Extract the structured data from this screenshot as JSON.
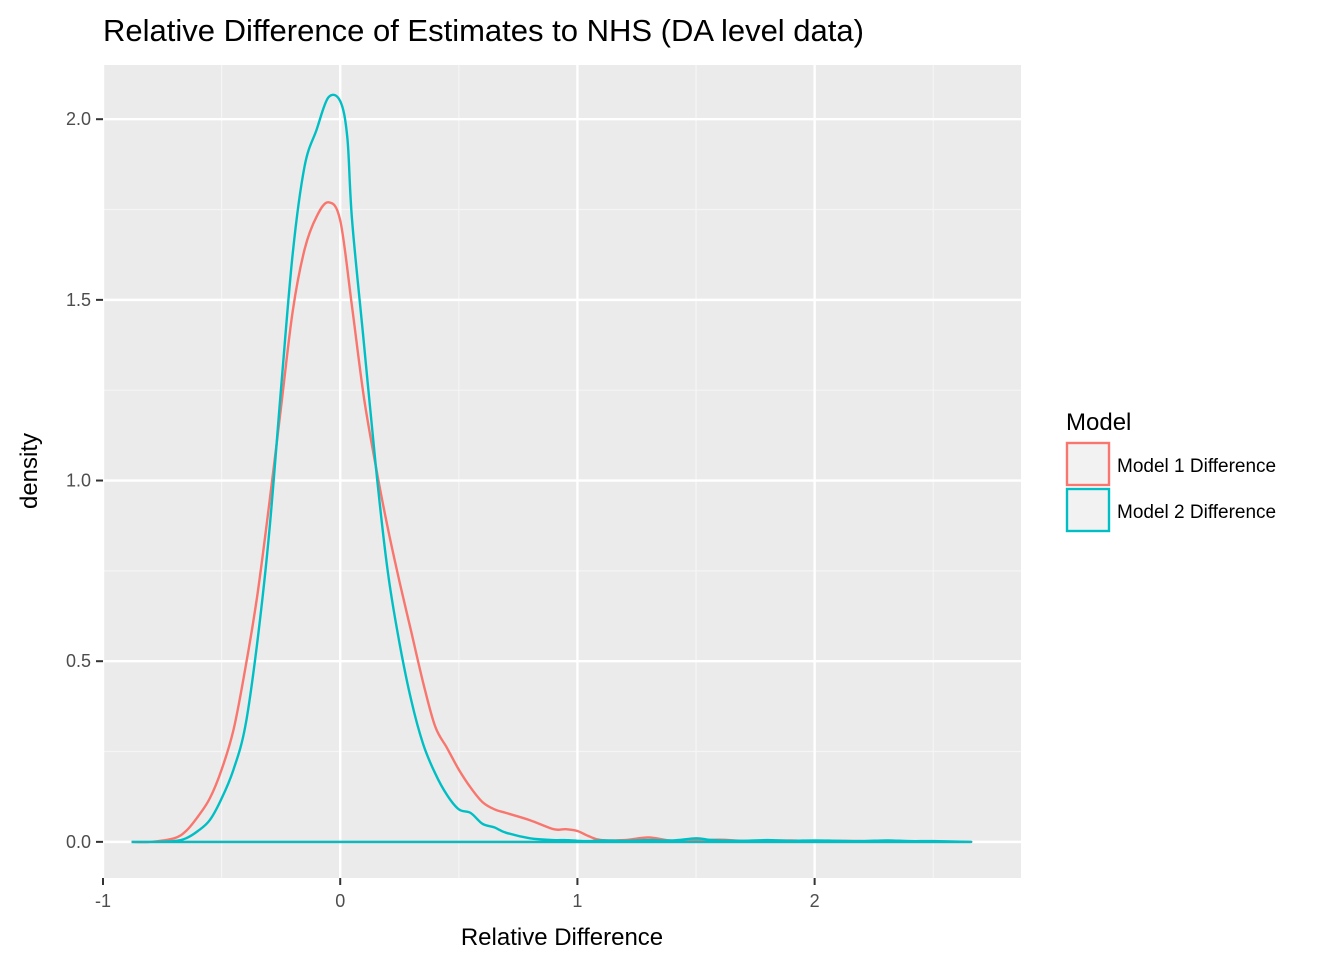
{
  "chart_data": {
    "type": "line",
    "title": "Relative Difference of Estimates to NHS (DA level data)",
    "xlabel": "Relative Difference",
    "ylabel": "density",
    "xlim": [
      -1.0,
      2.87
    ],
    "ylim": [
      -0.1,
      2.15
    ],
    "x_ticks": [
      -1,
      0,
      1,
      2
    ],
    "x_tick_labels": [
      "-1",
      "0",
      "1",
      "2"
    ],
    "x_minor": [
      -0.5,
      0.5,
      1.5,
      2.5
    ],
    "y_ticks": [
      0.0,
      0.5,
      1.0,
      1.5,
      2.0
    ],
    "y_tick_labels": [
      "0.0",
      "0.5",
      "1.0",
      "1.5",
      "2.0"
    ],
    "y_minor": [
      0.25,
      0.75,
      1.25,
      1.75
    ],
    "grid": true,
    "legend": {
      "title": "Model",
      "position": "right"
    },
    "baseline_range": [
      -0.88,
      2.66
    ],
    "series": [
      {
        "name": "Model 1 Difference",
        "color": "#F8766D",
        "x": [
          -0.88,
          -0.8,
          -0.7,
          -0.65,
          -0.6,
          -0.55,
          -0.5,
          -0.45,
          -0.4,
          -0.35,
          -0.3,
          -0.25,
          -0.2,
          -0.15,
          -0.1,
          -0.05,
          0.0,
          0.05,
          0.1,
          0.15,
          0.2,
          0.25,
          0.3,
          0.35,
          0.4,
          0.45,
          0.5,
          0.55,
          0.6,
          0.65,
          0.7,
          0.8,
          0.9,
          0.95,
          1.0,
          1.05,
          1.1,
          1.2,
          1.3,
          1.4,
          1.5,
          1.6,
          1.7,
          1.8,
          1.9,
          2.0,
          2.1,
          2.2,
          2.3,
          2.4,
          2.5,
          2.66
        ],
        "values": [
          0.0,
          0.0,
          0.01,
          0.03,
          0.07,
          0.12,
          0.2,
          0.31,
          0.48,
          0.68,
          0.93,
          1.2,
          1.47,
          1.64,
          1.73,
          1.77,
          1.72,
          1.48,
          1.23,
          1.04,
          0.87,
          0.72,
          0.58,
          0.44,
          0.32,
          0.26,
          0.2,
          0.15,
          0.11,
          0.09,
          0.08,
          0.06,
          0.035,
          0.035,
          0.03,
          0.015,
          0.005,
          0.005,
          0.012,
          0.003,
          0.004,
          0.006,
          0.003,
          0.003,
          0.004,
          0.002,
          0.003,
          0.002,
          0.002,
          0.001,
          0.001,
          0.0
        ]
      },
      {
        "name": "Model 2 Difference",
        "color": "#00BFC4",
        "x": [
          -0.88,
          -0.8,
          -0.7,
          -0.65,
          -0.6,
          -0.55,
          -0.5,
          -0.45,
          -0.4,
          -0.35,
          -0.3,
          -0.25,
          -0.2,
          -0.15,
          -0.1,
          -0.05,
          0.0,
          0.03,
          0.05,
          0.1,
          0.15,
          0.2,
          0.25,
          0.3,
          0.35,
          0.4,
          0.45,
          0.5,
          0.55,
          0.6,
          0.65,
          0.7,
          0.8,
          0.9,
          0.95,
          1.0,
          1.05,
          1.1,
          1.2,
          1.3,
          1.4,
          1.5,
          1.55,
          1.6,
          1.7,
          1.8,
          1.9,
          2.0,
          2.1,
          2.2,
          2.3,
          2.4,
          2.5,
          2.66
        ],
        "values": [
          0.0,
          0.0,
          0.002,
          0.01,
          0.03,
          0.06,
          0.12,
          0.2,
          0.32,
          0.55,
          0.85,
          1.25,
          1.63,
          1.87,
          1.97,
          2.06,
          2.05,
          1.95,
          1.72,
          1.38,
          1.04,
          0.75,
          0.55,
          0.39,
          0.27,
          0.19,
          0.13,
          0.09,
          0.08,
          0.05,
          0.04,
          0.025,
          0.01,
          0.005,
          0.005,
          0.003,
          0.002,
          0.004,
          0.003,
          0.005,
          0.004,
          0.01,
          0.006,
          0.004,
          0.003,
          0.005,
          0.003,
          0.004,
          0.003,
          0.002,
          0.004,
          0.002,
          0.002,
          0.0
        ]
      }
    ]
  }
}
